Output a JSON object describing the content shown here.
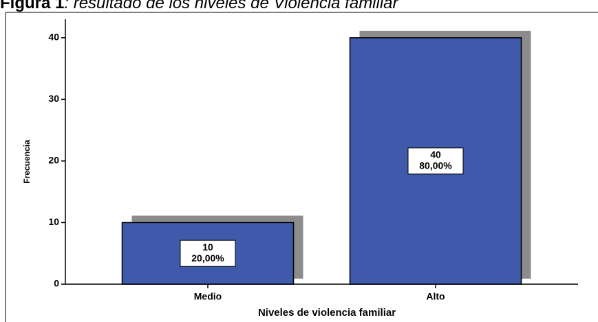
{
  "chart_data": {
    "type": "bar",
    "figure_label": "Figura 1",
    "title": ": resultado de los niveles de Violencia familiar",
    "x_label": "Niveles de violencia familiar",
    "y_label": "Frecuencia",
    "categories": [
      "Medio",
      "Alto"
    ],
    "values": [
      10,
      40
    ],
    "percentages": [
      20,
      80
    ],
    "percentage_labels": [
      "20,00%",
      "80,00%"
    ],
    "color": "#3f5aab",
    "shadow_color": "#8c8c8c",
    "ylim": [
      0,
      43
    ],
    "yticks": [
      0,
      10,
      20,
      30,
      40
    ],
    "grid": false
  }
}
